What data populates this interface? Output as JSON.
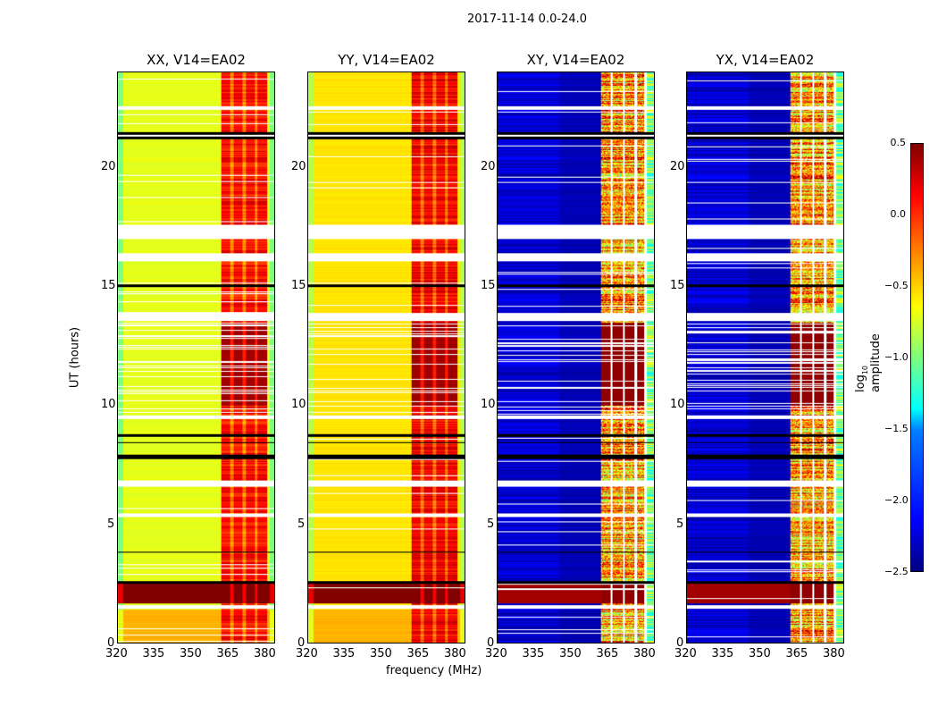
{
  "suptitle": "2017-11-14 0.0-24.0",
  "chart_data": {
    "type": "heatmap",
    "xlabel": "frequency (MHz)",
    "ylabel": "UT (hours)",
    "xlim": [
      320,
      384
    ],
    "ylim": [
      0,
      24
    ],
    "xticks": [
      "320",
      "335",
      "350",
      "365",
      "380"
    ],
    "yticks": [
      "0",
      "5",
      "10",
      "15",
      "20"
    ],
    "panels": [
      {
        "title": "XX, V14=EA02",
        "base": -0.7,
        "band": 0.1
      },
      {
        "title": "YY, V14=EA02",
        "base": -0.55,
        "band": 0.15
      },
      {
        "title": "XY, V14=EA02",
        "base": -2.4,
        "band": -0.6
      },
      {
        "title": "YX, V14=EA02",
        "base": -2.4,
        "band": -0.6
      }
    ],
    "band_mhz": [
      362,
      381
    ],
    "flagged_hours": [
      [
        1.45,
        1.6
      ],
      [
        5.3,
        5.45
      ],
      [
        6.6,
        6.85
      ],
      [
        9.45,
        9.6
      ],
      [
        13.55,
        13.9
      ],
      [
        16.05,
        16.4
      ],
      [
        17.0,
        17.6
      ],
      [
        21.25,
        21.45
      ],
      [
        22.45,
        22.6
      ]
    ],
    "black_hours": [
      [
        2.5,
        2.6
      ],
      [
        3.8,
        3.85
      ],
      [
        7.75,
        7.95
      ],
      [
        8.4,
        8.45
      ],
      [
        8.7,
        8.8
      ],
      [
        15.0,
        15.1
      ],
      [
        21.2,
        21.3
      ],
      [
        21.4,
        21.5
      ]
    ],
    "colorbar": {
      "label": "log10 amplitude",
      "ticks": [
        "0.5",
        "0.0",
        "−0.5",
        "−1.0",
        "−1.5",
        "−2.0",
        "−2.5"
      ],
      "range": [
        -2.5,
        0.5
      ]
    }
  }
}
